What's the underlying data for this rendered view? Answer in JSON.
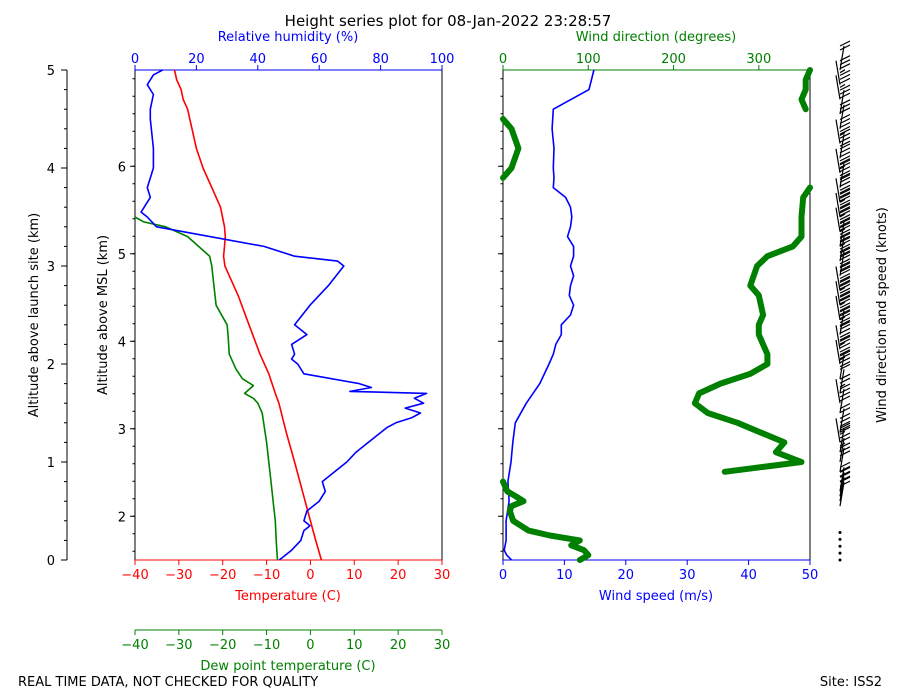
{
  "chart_data": {
    "type": "line",
    "title": "Height series plot for 08-Jan-2022 23:28:57",
    "footer_left": "REAL TIME DATA, NOT CHECKED FOR QUALITY",
    "footer_right": "Site: ISS2",
    "colors": {
      "temperature": "#ff0000",
      "dewpoint": "#008000",
      "humidity": "#0000ff",
      "wind_speed": "#0000ff",
      "wind_dir": "#008000",
      "barb": "#000000"
    },
    "axes": {
      "agl": {
        "label": "Altitude above launch site (km)",
        "range": [
          0,
          5
        ],
        "ticks": [
          "0",
          "1",
          "2",
          "3",
          "4",
          "5"
        ]
      },
      "msl": {
        "label": "Altitude above MSL (km)",
        "range": [
          1.5,
          7.1
        ],
        "ticks": [
          "2",
          "3",
          "4",
          "5",
          "6"
        ]
      },
      "temperature": {
        "label": "Temperature (C)",
        "range": [
          -40,
          30
        ],
        "ticks": [
          "−40",
          "−30",
          "−20",
          "−10",
          "0",
          "10",
          "20",
          "30"
        ]
      },
      "dewpoint": {
        "label": "Dew point temperature (C)",
        "range": [
          -40,
          30
        ],
        "ticks": [
          "−40",
          "−30",
          "−20",
          "−10",
          "0",
          "10",
          "20",
          "30"
        ]
      },
      "humidity": {
        "label": "Relative humidity (%)",
        "range": [
          0,
          100
        ],
        "ticks": [
          "0",
          "20",
          "40",
          "60",
          "80",
          "100"
        ]
      },
      "wind_speed": {
        "label": "Wind speed (m/s)",
        "range": [
          0,
          50
        ],
        "ticks": [
          "0",
          "10",
          "20",
          "30",
          "40",
          "50"
        ]
      },
      "wind_dir": {
        "label": "Wind direction (degrees)",
        "range": [
          0,
          360
        ],
        "ticks": [
          "0",
          "100",
          "200",
          "300"
        ]
      },
      "barbs": {
        "label": "Wind direction and speed (knots)"
      }
    },
    "series": [
      {
        "name": "Temperature",
        "axis": "temperature",
        "points": [
          [
            0,
            2.5
          ],
          [
            0.2,
            1.2
          ],
          [
            0.4,
            0
          ],
          [
            0.7,
            -1.8
          ],
          [
            1.0,
            -3.6
          ],
          [
            1.3,
            -5.5
          ],
          [
            1.6,
            -7.2
          ],
          [
            1.7,
            -8.0
          ],
          [
            1.9,
            -9.5
          ],
          [
            2.1,
            -11.5
          ],
          [
            2.4,
            -14
          ],
          [
            2.7,
            -16.5
          ],
          [
            2.9,
            -18.5
          ],
          [
            3.0,
            -19.5
          ],
          [
            3.1,
            -19.8
          ],
          [
            3.2,
            -19.6
          ],
          [
            3.3,
            -19.4
          ],
          [
            3.4,
            -19.6
          ],
          [
            3.6,
            -20.5
          ],
          [
            3.8,
            -22.5
          ],
          [
            4.0,
            -24.5
          ],
          [
            4.2,
            -26
          ],
          [
            4.4,
            -27
          ],
          [
            4.6,
            -28
          ],
          [
            4.7,
            -29
          ],
          [
            4.8,
            -29.5
          ],
          [
            4.9,
            -30.5
          ],
          [
            5.0,
            -31
          ]
        ]
      },
      {
        "name": "Dew point",
        "axis": "dewpoint",
        "points": [
          [
            0,
            -7.5
          ],
          [
            0.2,
            -7.8
          ],
          [
            0.4,
            -8
          ],
          [
            0.6,
            -8.5
          ],
          [
            0.8,
            -9
          ],
          [
            1.0,
            -9.5
          ],
          [
            1.2,
            -10
          ],
          [
            1.35,
            -10.5
          ],
          [
            1.5,
            -11
          ],
          [
            1.6,
            -12
          ],
          [
            1.65,
            -13
          ],
          [
            1.7,
            -15
          ],
          [
            1.78,
            -13
          ],
          [
            1.85,
            -15.5
          ],
          [
            1.95,
            -17
          ],
          [
            2.1,
            -18.5
          ],
          [
            2.3,
            -18.8
          ],
          [
            2.4,
            -19
          ],
          [
            2.6,
            -21.5
          ],
          [
            2.8,
            -22
          ],
          [
            3.0,
            -22.5
          ],
          [
            3.1,
            -23
          ],
          [
            3.2,
            -25.5
          ],
          [
            3.3,
            -28
          ],
          [
            3.4,
            -33
          ],
          [
            3.45,
            -38
          ],
          [
            3.5,
            -40
          ]
        ]
      },
      {
        "name": "Relative humidity",
        "axis": "humidity",
        "points": [
          [
            0,
            47
          ],
          [
            0.1,
            51
          ],
          [
            0.2,
            54
          ],
          [
            0.3,
            55
          ],
          [
            0.35,
            57
          ],
          [
            0.4,
            55
          ],
          [
            0.5,
            56
          ],
          [
            0.6,
            60
          ],
          [
            0.7,
            62
          ],
          [
            0.8,
            61
          ],
          [
            0.9,
            65
          ],
          [
            1.0,
            69
          ],
          [
            1.1,
            72
          ],
          [
            1.2,
            76
          ],
          [
            1.3,
            80
          ],
          [
            1.35,
            82
          ],
          [
            1.4,
            85
          ],
          [
            1.45,
            90
          ],
          [
            1.5,
            93
          ],
          [
            1.55,
            88
          ],
          [
            1.6,
            94
          ],
          [
            1.65,
            91
          ],
          [
            1.7,
            95
          ],
          [
            1.72,
            70
          ],
          [
            1.76,
            77
          ],
          [
            1.8,
            73
          ],
          [
            1.9,
            55
          ],
          [
            2.0,
            53
          ],
          [
            2.05,
            51
          ],
          [
            2.1,
            52
          ],
          [
            2.2,
            51
          ],
          [
            2.3,
            56
          ],
          [
            2.4,
            52
          ],
          [
            2.6,
            57
          ],
          [
            2.8,
            63
          ],
          [
            3.0,
            68
          ],
          [
            3.05,
            66
          ],
          [
            3.1,
            52
          ],
          [
            3.2,
            42
          ],
          [
            3.4,
            7
          ],
          [
            3.5,
            4
          ],
          [
            3.55,
            2
          ],
          [
            3.7,
            5
          ],
          [
            3.8,
            4
          ],
          [
            4.0,
            6
          ],
          [
            4.2,
            6
          ],
          [
            4.5,
            5
          ],
          [
            4.6,
            5
          ],
          [
            4.75,
            6
          ],
          [
            4.85,
            4
          ],
          [
            4.95,
            6
          ],
          [
            5.0,
            9
          ]
        ]
      },
      {
        "name": "Wind speed",
        "axis": "wind_speed",
        "points": [
          [
            0,
            1.4
          ],
          [
            0.05,
            0.6
          ],
          [
            0.1,
            0.2
          ],
          [
            0.2,
            0.5
          ],
          [
            0.4,
            0.5
          ],
          [
            0.6,
            1.0
          ],
          [
            0.8,
            0.8
          ],
          [
            1.0,
            1.3
          ],
          [
            1.2,
            1.6
          ],
          [
            1.4,
            2.0
          ],
          [
            1.6,
            3.8
          ],
          [
            1.8,
            6
          ],
          [
            2.0,
            7.5
          ],
          [
            2.1,
            8.2
          ],
          [
            2.2,
            8.6
          ],
          [
            2.3,
            9.5
          ],
          [
            2.4,
            9.5
          ],
          [
            2.5,
            11
          ],
          [
            2.6,
            11.5
          ],
          [
            2.7,
            10.8
          ],
          [
            2.8,
            11
          ],
          [
            2.9,
            11.5
          ],
          [
            3.0,
            11
          ],
          [
            3.1,
            11.5
          ],
          [
            3.2,
            11.5
          ],
          [
            3.3,
            10.5
          ],
          [
            3.4,
            11
          ],
          [
            3.5,
            11.2
          ],
          [
            3.6,
            11
          ],
          [
            3.7,
            10.2
          ],
          [
            3.8,
            8.2
          ],
          [
            3.9,
            8.3
          ],
          [
            4.0,
            8.2
          ],
          [
            4.2,
            8.3
          ],
          [
            4.4,
            8
          ],
          [
            4.6,
            8.2
          ],
          [
            4.8,
            14
          ],
          [
            5.0,
            14.8
          ]
        ]
      },
      {
        "name": "Wind direction",
        "axis": "wind_dir",
        "points": [
          [
            0,
            90
          ],
          [
            0.05,
            100
          ],
          [
            0.1,
            95
          ],
          [
            0.15,
            80
          ],
          [
            0.2,
            90
          ],
          [
            0.25,
            55
          ],
          [
            0.3,
            30
          ],
          [
            0.4,
            12
          ],
          [
            0.5,
            8
          ],
          [
            0.55,
            10
          ],
          [
            0.6,
            24
          ],
          [
            0.65,
            15
          ],
          [
            0.7,
            5
          ],
          [
            0.8,
            0
          ],
          [
            0.9,
            260
          ],
          [
            1.0,
            350
          ],
          [
            1.1,
            320
          ],
          [
            1.2,
            330
          ],
          [
            1.4,
            275
          ],
          [
            1.5,
            240
          ],
          [
            1.6,
            225
          ],
          [
            1.7,
            230
          ],
          [
            1.8,
            255
          ],
          [
            1.9,
            290
          ],
          [
            2.0,
            310
          ],
          [
            2.1,
            310
          ],
          [
            2.2,
            305
          ],
          [
            2.3,
            300
          ],
          [
            2.4,
            300
          ],
          [
            2.5,
            305
          ],
          [
            2.7,
            300
          ],
          [
            2.8,
            290
          ],
          [
            3.0,
            298
          ],
          [
            3.1,
            310
          ],
          [
            3.2,
            340
          ],
          [
            3.3,
            350
          ],
          [
            3.5,
            350
          ],
          [
            3.7,
            352
          ],
          [
            3.8,
            360
          ],
          [
            3.9,
            0
          ],
          [
            4.0,
            10
          ],
          [
            4.2,
            18
          ],
          [
            4.4,
            10
          ],
          [
            4.5,
            0
          ],
          [
            4.6,
            355
          ],
          [
            4.7,
            350
          ],
          [
            4.8,
            355
          ],
          [
            4.9,
            355
          ],
          [
            5.0,
            360
          ]
        ]
      }
    ],
    "barbs_data": [
      [
        0.0,
        0
      ],
      [
        0.07,
        0
      ],
      [
        0.14,
        0
      ],
      [
        0.21,
        0
      ],
      [
        0.28,
        0
      ],
      [
        0.55,
        20
      ],
      [
        0.6,
        22
      ],
      [
        0.65,
        22
      ],
      [
        0.7,
        20
      ],
      [
        0.9,
        30
      ],
      [
        1.0,
        18
      ],
      [
        1.1,
        22
      ],
      [
        1.2,
        35
      ],
      [
        1.3,
        22
      ],
      [
        1.5,
        40
      ],
      [
        1.6,
        15
      ],
      [
        1.7,
        10
      ],
      [
        1.85,
        40
      ],
      [
        2.0,
        45
      ],
      [
        2.15,
        45
      ],
      [
        2.3,
        50
      ],
      [
        2.45,
        55
      ],
      [
        2.6,
        55
      ],
      [
        2.75,
        55
      ],
      [
        2.9,
        60
      ],
      [
        3.05,
        60
      ],
      [
        3.2,
        58
      ],
      [
        3.35,
        55
      ],
      [
        3.5,
        55
      ],
      [
        3.65,
        55
      ],
      [
        3.8,
        50
      ],
      [
        3.95,
        45
      ],
      [
        4.1,
        40
      ],
      [
        4.25,
        35
      ],
      [
        4.4,
        30
      ],
      [
        4.55,
        30
      ],
      [
        4.7,
        25
      ],
      [
        4.85,
        25
      ],
      [
        5.0,
        20
      ]
    ]
  }
}
